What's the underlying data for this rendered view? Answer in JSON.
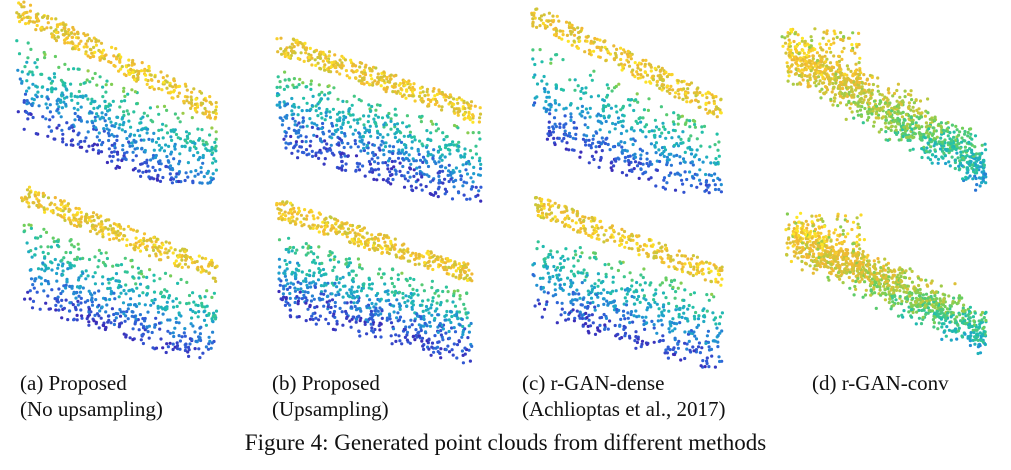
{
  "figure": {
    "caption": "Figure 4: Generated point clouds from different methods",
    "colormap": [
      "#3b2cb8",
      "#2f5fd8",
      "#1f9fd0",
      "#22c1a8",
      "#6fcf5a",
      "#c9c83a",
      "#f2b734",
      "#fde725"
    ],
    "panels": [
      {
        "caption_line1": "(a) Proposed",
        "caption_line2": "(No upsampling)",
        "method": "proposed-no-upsampling"
      },
      {
        "caption_line1": "(b) Proposed",
        "caption_line2": "(Upsampling)",
        "method": "proposed-upsampling"
      },
      {
        "caption_line1": "(c) r-GAN-dense",
        "caption_line2": "(Achlioptas et al., 2017)",
        "method": "r-gan-dense"
      },
      {
        "caption_line1": "",
        "caption_line2": "(d) r-GAN-conv",
        "method": "r-gan-conv"
      }
    ]
  }
}
